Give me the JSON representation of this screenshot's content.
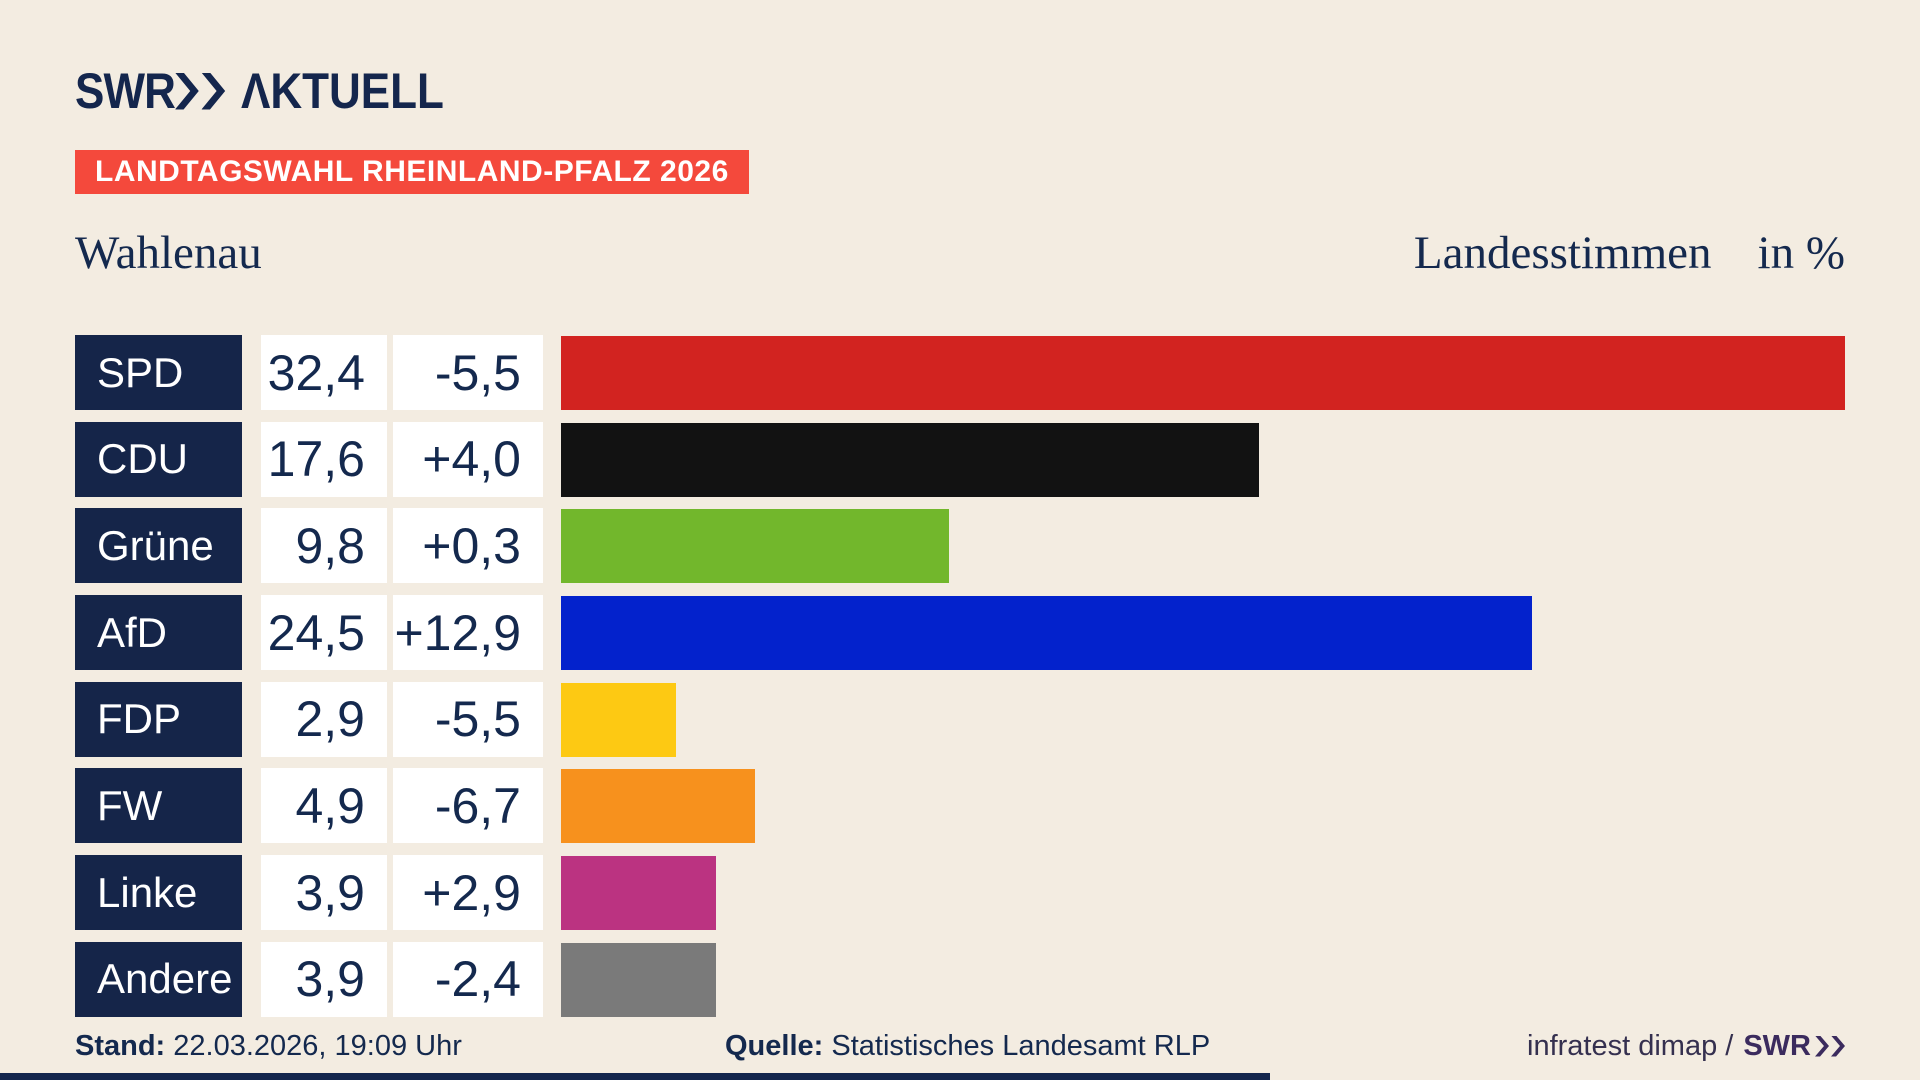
{
  "brand": {
    "logo_swr": "SWR",
    "logo_aktuell": "ΛKTUELL"
  },
  "badge": {
    "label": "LANDTAGSWAHL RHEINLAND-PFALZ 2026",
    "bg_color": "#f4493c"
  },
  "header": {
    "region": "Wahlenau",
    "measure": "Landesstimmen",
    "unit": "in %"
  },
  "chart_data": {
    "type": "bar",
    "orientation": "horizontal",
    "title": "Wahlenau",
    "subtitle": "Landesstimmen in %",
    "unit": "%",
    "xlim": [
      0,
      32.4
    ],
    "categories": [
      "SPD",
      "CDU",
      "Grüne",
      "AfD",
      "FDP",
      "FW",
      "Linke",
      "Andere"
    ],
    "rows": [
      {
        "party": "SPD",
        "value_label": "32,4",
        "value_num": 32.4,
        "change_label": "-5,5",
        "color": "#d22320"
      },
      {
        "party": "CDU",
        "value_label": "17,6",
        "value_num": 17.6,
        "change_label": "+4,0",
        "color": "#121212"
      },
      {
        "party": "Grüne",
        "value_label": "9,8",
        "value_num": 9.8,
        "change_label": "+0,3",
        "color": "#72b72c"
      },
      {
        "party": "AfD",
        "value_label": "24,5",
        "value_num": 24.5,
        "change_label": "+12,9",
        "color": "#0322cc"
      },
      {
        "party": "FDP",
        "value_label": "2,9",
        "value_num": 2.9,
        "change_label": "-5,5",
        "color": "#fdc913"
      },
      {
        "party": "FW",
        "value_label": "4,9",
        "value_num": 4.9,
        "change_label": "-6,7",
        "color": "#f7911d"
      },
      {
        "party": "Linke",
        "value_label": "3,9",
        "value_num": 3.9,
        "change_label": "+2,9",
        "color": "#bb3381"
      },
      {
        "party": "Andere",
        "value_label": "3,9",
        "value_num": 3.9,
        "change_label": "-2,4",
        "color": "#7a7a7a"
      }
    ]
  },
  "footer": {
    "stand_label": "Stand:",
    "stand_value": "22.03.2026, 19:09 Uhr",
    "quelle_label": "Quelle:",
    "quelle_value": "Statistisches Landesamt RLP",
    "credit": "infratest dimap /",
    "credit_brand": "SWR"
  },
  "colors": {
    "navy": "#14264d",
    "box_navy": "#152549",
    "badge_red": "#f4493c",
    "footer_purple": "#3b2b5e",
    "background_cream": "#f3ece1"
  }
}
